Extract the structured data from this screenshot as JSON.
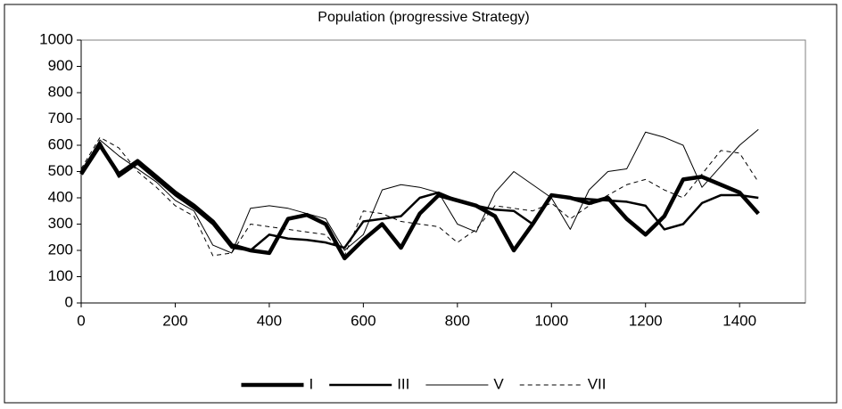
{
  "chart_data": {
    "type": "line",
    "title": "Population (progressive Strategy)",
    "x": [
      0,
      40,
      80,
      120,
      160,
      200,
      240,
      280,
      320,
      360,
      400,
      440,
      480,
      520,
      560,
      600,
      640,
      680,
      720,
      760,
      800,
      840,
      880,
      920,
      960,
      1000,
      1040,
      1080,
      1120,
      1160,
      1200,
      1240,
      1280,
      1320,
      1360,
      1400,
      1440
    ],
    "xlim": [
      0,
      1540
    ],
    "xticks": [
      0,
      200,
      400,
      600,
      800,
      1000,
      1200,
      1400
    ],
    "ylim": [
      0,
      1000
    ],
    "yticks": [
      0,
      100,
      200,
      300,
      400,
      500,
      600,
      700,
      800,
      900,
      1000
    ],
    "grid": false,
    "legend": "bottom",
    "series": [
      {
        "name": "I",
        "color": "#000000",
        "line_width": 4.5,
        "dash": "solid",
        "values": [
          490,
          600,
          490,
          540,
          480,
          420,
          370,
          310,
          220,
          200,
          190,
          320,
          335,
          300,
          170,
          240,
          300,
          210,
          340,
          410,
          390,
          370,
          330,
          200,
          300,
          410,
          400,
          380,
          400,
          320,
          260,
          330,
          470,
          480,
          450,
          420,
          340
        ]
      },
      {
        "name": "III",
        "color": "#000000",
        "line_width": 2.5,
        "dash": "solid",
        "values": [
          500,
          610,
          480,
          530,
          470,
          410,
          360,
          300,
          210,
          200,
          260,
          245,
          240,
          230,
          210,
          310,
          320,
          330,
          400,
          420,
          390,
          370,
          355,
          350,
          300,
          410,
          400,
          395,
          390,
          385,
          370,
          280,
          300,
          380,
          410,
          410,
          400
        ]
      },
      {
        "name": "V",
        "color": "#000000",
        "line_width": 1,
        "dash": "solid",
        "values": [
          500,
          620,
          560,
          510,
          460,
          390,
          350,
          220,
          190,
          360,
          370,
          360,
          340,
          320,
          200,
          260,
          430,
          450,
          440,
          420,
          300,
          270,
          420,
          500,
          450,
          400,
          280,
          430,
          500,
          510,
          650,
          630,
          600,
          440,
          520,
          600,
          660
        ]
      },
      {
        "name": "VII",
        "color": "#000000",
        "line_width": 1,
        "dash": "dashed",
        "values": [
          510,
          630,
          590,
          500,
          440,
          370,
          330,
          180,
          190,
          300,
          290,
          280,
          270,
          260,
          180,
          350,
          340,
          310,
          300,
          290,
          230,
          280,
          370,
          360,
          350,
          380,
          320,
          370,
          410,
          450,
          470,
          430,
          400,
          490,
          580,
          570,
          460
        ]
      }
    ]
  }
}
